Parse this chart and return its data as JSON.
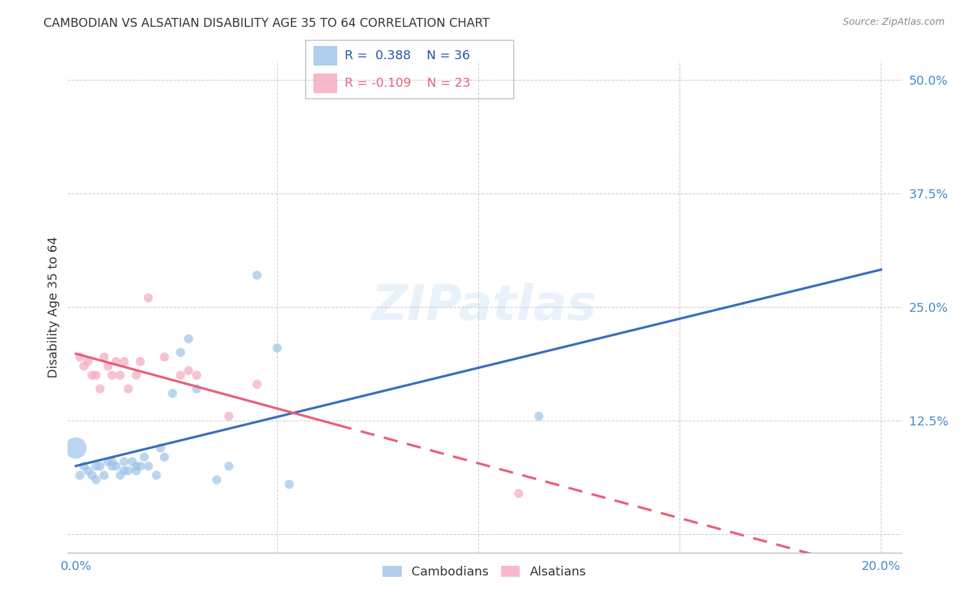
{
  "title": "CAMBODIAN VS ALSATIAN DISABILITY AGE 35 TO 64 CORRELATION CHART",
  "source": "Source: ZipAtlas.com",
  "xlabel_ticks": [
    "0.0%",
    "",
    "",
    "",
    "20.0%"
  ],
  "xlabel_tick_vals": [
    0.0,
    0.05,
    0.1,
    0.15,
    0.2
  ],
  "ylabel": "Disability Age 35 to 64",
  "ylabel_ticks": [
    "12.5%",
    "25.0%",
    "37.5%",
    "50.0%"
  ],
  "ylabel_tick_vals": [
    0.125,
    0.25,
    0.375,
    0.5
  ],
  "xlim": [
    -0.002,
    0.205
  ],
  "ylim": [
    -0.02,
    0.52
  ],
  "ytick_all": [
    0.0,
    0.125,
    0.25,
    0.375,
    0.5
  ],
  "ytick_all_labels": [
    "",
    "12.5%",
    "25.0%",
    "37.5%",
    "50.0%"
  ],
  "R_cambodian": 0.388,
  "N_cambodian": 36,
  "R_alsatian": -0.109,
  "N_alsatian": 23,
  "cambodian_color": "#9ec4e8",
  "alsatian_color": "#f5a8be",
  "cambodian_line_color": "#3a6fba",
  "alsatian_line_color": "#e8607a",
  "legend_label_cambodian": "Cambodians",
  "legend_label_alsatian": "Alsatians",
  "cambodian_x": [
    0.0,
    0.001,
    0.002,
    0.003,
    0.004,
    0.005,
    0.005,
    0.006,
    0.007,
    0.008,
    0.009,
    0.009,
    0.01,
    0.011,
    0.012,
    0.012,
    0.013,
    0.014,
    0.015,
    0.015,
    0.016,
    0.017,
    0.018,
    0.02,
    0.021,
    0.022,
    0.024,
    0.026,
    0.028,
    0.03,
    0.035,
    0.038,
    0.045,
    0.05,
    0.115,
    0.053
  ],
  "cambodian_y": [
    0.095,
    0.065,
    0.075,
    0.07,
    0.065,
    0.06,
    0.075,
    0.075,
    0.065,
    0.08,
    0.075,
    0.08,
    0.075,
    0.065,
    0.07,
    0.08,
    0.07,
    0.08,
    0.075,
    0.07,
    0.075,
    0.085,
    0.075,
    0.065,
    0.095,
    0.085,
    0.155,
    0.2,
    0.215,
    0.16,
    0.06,
    0.075,
    0.285,
    0.205,
    0.13,
    0.055
  ],
  "alsatian_x": [
    0.001,
    0.002,
    0.003,
    0.004,
    0.005,
    0.006,
    0.007,
    0.008,
    0.009,
    0.01,
    0.011,
    0.012,
    0.013,
    0.015,
    0.016,
    0.018,
    0.022,
    0.026,
    0.028,
    0.03,
    0.038,
    0.045,
    0.11
  ],
  "alsatian_y": [
    0.195,
    0.185,
    0.19,
    0.175,
    0.175,
    0.16,
    0.195,
    0.185,
    0.175,
    0.19,
    0.175,
    0.19,
    0.16,
    0.175,
    0.19,
    0.26,
    0.195,
    0.175,
    0.18,
    0.175,
    0.13,
    0.165,
    0.045
  ],
  "cam_big_idx": 0,
  "als_big_idx": -1
}
